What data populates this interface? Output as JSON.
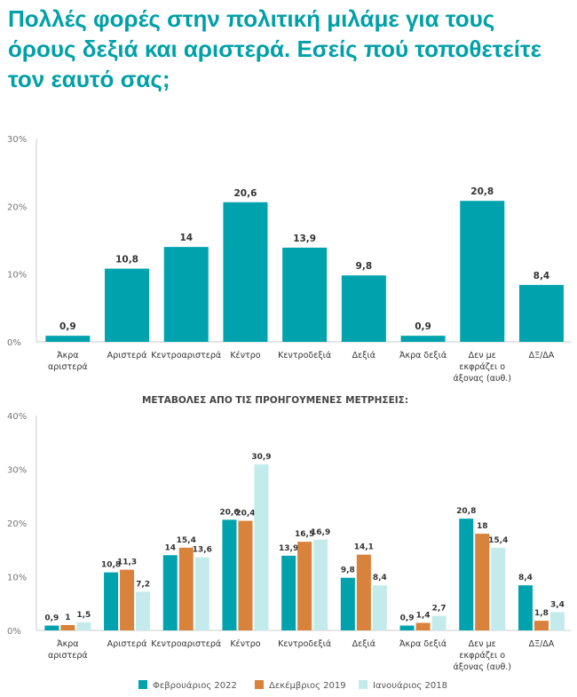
{
  "title": "Πολλές φορές στην πολιτική μιλάμε για τους όρους δεξιά και αριστερά. Εσείς πού τοποθετείτε τον εαυτό σας;",
  "colors": {
    "feb2022": "#00a3ad",
    "dec2019": "#d9823b",
    "jan2018": "#c4ebeb",
    "axis": "#cccccc",
    "text": "#333333"
  },
  "chart_data": [
    {
      "type": "bar",
      "title": "",
      "categories": [
        [
          "Άκρα",
          "αριστερά"
        ],
        [
          "Αριστερά"
        ],
        [
          "Κεντροαριστερά"
        ],
        [
          "Κέντρο"
        ],
        [
          "Κεντροδεξιά"
        ],
        [
          "Δεξιά"
        ],
        [
          "Άκρα δεξιά"
        ],
        [
          "Δεν με",
          "εκφράζει ο",
          "άξονας (αυθ.)"
        ],
        [
          "ΔΞ/ΔΑ"
        ]
      ],
      "values": [
        0.9,
        10.8,
        14,
        20.6,
        13.9,
        9.8,
        0.9,
        20.8,
        8.4
      ],
      "value_labels": [
        "0,9",
        "10,8",
        "14",
        "20,6",
        "13,9",
        "9,8",
        "0,9",
        "20,8",
        "8,4"
      ],
      "yticks": [
        "0%",
        "10%",
        "20%",
        "30%"
      ],
      "ylim": [
        0,
        30
      ],
      "xlabel": "",
      "ylabel": ""
    },
    {
      "type": "bar",
      "title": "ΜΕΤΑΒΟΛΕΣ ΑΠΟ ΤΙΣ ΠΡΟΗΓΟΥΜΕΝΕΣ ΜΕΤΡΗΣΕΙΣ:",
      "categories": [
        [
          "Άκρα",
          "αριστερά"
        ],
        [
          "Αριστερά"
        ],
        [
          "Κεντροαριστερά"
        ],
        [
          "Κέντρο"
        ],
        [
          "Κεντροδεξιά"
        ],
        [
          "Δεξιά"
        ],
        [
          "Άκρα δεξιά"
        ],
        [
          "Δεν με",
          "εκφράζει ο",
          "άξονας (αυθ.)"
        ],
        [
          "ΔΞ/ΔΑ"
        ]
      ],
      "series": [
        {
          "name": "Φεβρουάριος 2022",
          "color_key": "feb2022",
          "values": [
            0.9,
            10.8,
            14,
            20.6,
            13.9,
            9.8,
            0.9,
            20.8,
            8.4
          ],
          "value_labels": [
            "0,9",
            "10,8",
            "14",
            "20,6",
            "13,9",
            "9,8",
            "0,9",
            "20,8",
            "8,4"
          ]
        },
        {
          "name": "Δεκέμβριος 2019",
          "color_key": "dec2019",
          "values": [
            1,
            11.3,
            15.4,
            20.4,
            16.5,
            14.1,
            1.4,
            18,
            1.8
          ],
          "value_labels": [
            "1",
            "11,3",
            "15,4",
            "20,4",
            "16,5",
            "14,1",
            "1,4",
            "18",
            "1,8"
          ]
        },
        {
          "name": "Ιανουάριος 2018",
          "color_key": "jan2018",
          "values": [
            1.5,
            7.2,
            13.6,
            30.9,
            16.9,
            8.4,
            2.7,
            15.4,
            3.4
          ],
          "value_labels": [
            "1,5",
            "7,2",
            "13,6",
            "30,9",
            "16,9",
            "8,4",
            "2,7",
            "15,4",
            "3,4"
          ]
        }
      ],
      "yticks": [
        "0%",
        "10%",
        "20%",
        "30%",
        "40%"
      ],
      "ylim": [
        0,
        40
      ],
      "legend": "bottom",
      "xlabel": "",
      "ylabel": ""
    }
  ]
}
